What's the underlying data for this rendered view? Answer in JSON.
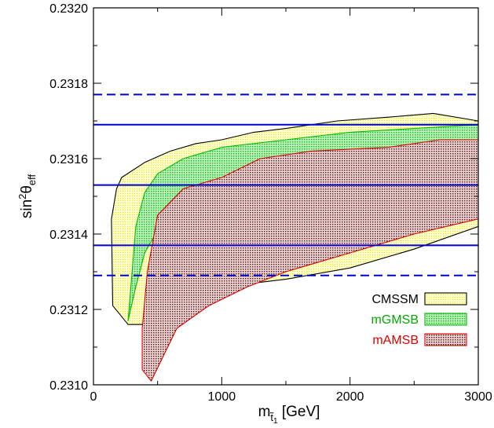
{
  "chart_data": {
    "type": "area",
    "title": "",
    "xlabel": {
      "main": "m",
      "sub": "t̃",
      "subsub": "1",
      "unit": " [GeV]"
    },
    "ylabel": {
      "main": "sin",
      "sup": "2",
      "theta": "θ",
      "sub": "eff"
    },
    "xlim": [
      0,
      3000
    ],
    "ylim": [
      0.231,
      0.232
    ],
    "x_ticks": [
      0,
      1000,
      2000,
      3000
    ],
    "y_ticks": [
      0.231,
      0.2312,
      0.2314,
      0.2316,
      0.2318,
      0.232
    ],
    "x_tick_labels": [
      "0",
      "1000",
      "2000",
      "3000"
    ],
    "y_tick_labels": [
      "0.2310",
      "0.2312",
      "0.2314",
      "0.2316",
      "0.2318",
      "0.2320"
    ],
    "hlines": [
      {
        "y": 0.23177,
        "style": "dashed",
        "color": "#0000cc"
      },
      {
        "y": 0.23169,
        "style": "solid",
        "color": "#0000cc"
      },
      {
        "y": 0.23153,
        "style": "solid",
        "color": "#0000cc"
      },
      {
        "y": 0.23137,
        "style": "solid",
        "color": "#0000cc"
      },
      {
        "y": 0.23129,
        "style": "dashed",
        "color": "#0000cc"
      }
    ],
    "series": [
      {
        "name": "CMSSM",
        "fill": "#ffff99",
        "stroke": "#000000",
        "polygon": [
          [
            150,
            0.23121
          ],
          [
            140,
            0.23144
          ],
          [
            180,
            0.23152
          ],
          [
            220,
            0.23155
          ],
          [
            400,
            0.23159
          ],
          [
            600,
            0.23162
          ],
          [
            800,
            0.23164
          ],
          [
            1000,
            0.23165
          ],
          [
            1250,
            0.23167
          ],
          [
            1500,
            0.23168
          ],
          [
            1900,
            0.2317
          ],
          [
            2300,
            0.23171
          ],
          [
            2650,
            0.23172
          ],
          [
            3000,
            0.2317
          ],
          [
            3000,
            0.23142
          ],
          [
            2500,
            0.23136
          ],
          [
            2000,
            0.23131
          ],
          [
            1500,
            0.23128
          ],
          [
            1250,
            0.23127
          ],
          [
            820,
            0.23126
          ],
          [
            500,
            0.23128
          ],
          [
            460,
            0.23121
          ],
          [
            380,
            0.23116
          ],
          [
            270,
            0.23116
          ]
        ]
      },
      {
        "name": "mGMSB",
        "fill": "#66ee66",
        "stroke": "#00bb00",
        "polygon": [
          [
            270,
            0.23117
          ],
          [
            330,
            0.23126
          ],
          [
            400,
            0.23135
          ],
          [
            500,
            0.23141
          ],
          [
            700,
            0.23146
          ],
          [
            1000,
            0.23148
          ],
          [
            1500,
            0.2315
          ],
          [
            2000,
            0.23151
          ],
          [
            2500,
            0.23152
          ],
          [
            3000,
            0.23153
          ],
          [
            3000,
            0.23169
          ],
          [
            2500,
            0.23168
          ],
          [
            2000,
            0.23167
          ],
          [
            1500,
            0.23165
          ],
          [
            1000,
            0.23163
          ],
          [
            700,
            0.2316
          ],
          [
            500,
            0.23156
          ],
          [
            400,
            0.23151
          ],
          [
            330,
            0.23142
          ],
          [
            270,
            0.23117
          ]
        ]
      },
      {
        "name": "mAMSB",
        "fill": "#ff8888",
        "stroke": "#dd0000",
        "polygon": [
          [
            380,
            0.23115
          ],
          [
            420,
            0.2313
          ],
          [
            500,
            0.23145
          ],
          [
            700,
            0.23152
          ],
          [
            1000,
            0.23155
          ],
          [
            1300,
            0.2316
          ],
          [
            1700,
            0.23162
          ],
          [
            2300,
            0.23163
          ],
          [
            2700,
            0.23165
          ],
          [
            3000,
            0.23165
          ],
          [
            3000,
            0.23144
          ],
          [
            2500,
            0.2314
          ],
          [
            2000,
            0.23135
          ],
          [
            1500,
            0.2313
          ],
          [
            1200,
            0.23126
          ],
          [
            900,
            0.23121
          ],
          [
            650,
            0.23115
          ],
          [
            450,
            0.23101
          ],
          [
            380,
            0.23104
          ]
        ]
      }
    ],
    "legend": {
      "placement": "bottom-right",
      "items": [
        {
          "name": "CMSSM",
          "color": "#000000",
          "fill": "#ffff99",
          "stroke": "#000000"
        },
        {
          "name": "mGMSB",
          "color": "#00aa00",
          "fill": "#66ee66",
          "stroke": "#00bb00"
        },
        {
          "name": "mAMSB",
          "color": "#dd0000",
          "fill": "#ff8888",
          "stroke": "#dd0000"
        }
      ]
    },
    "grid": false
  }
}
